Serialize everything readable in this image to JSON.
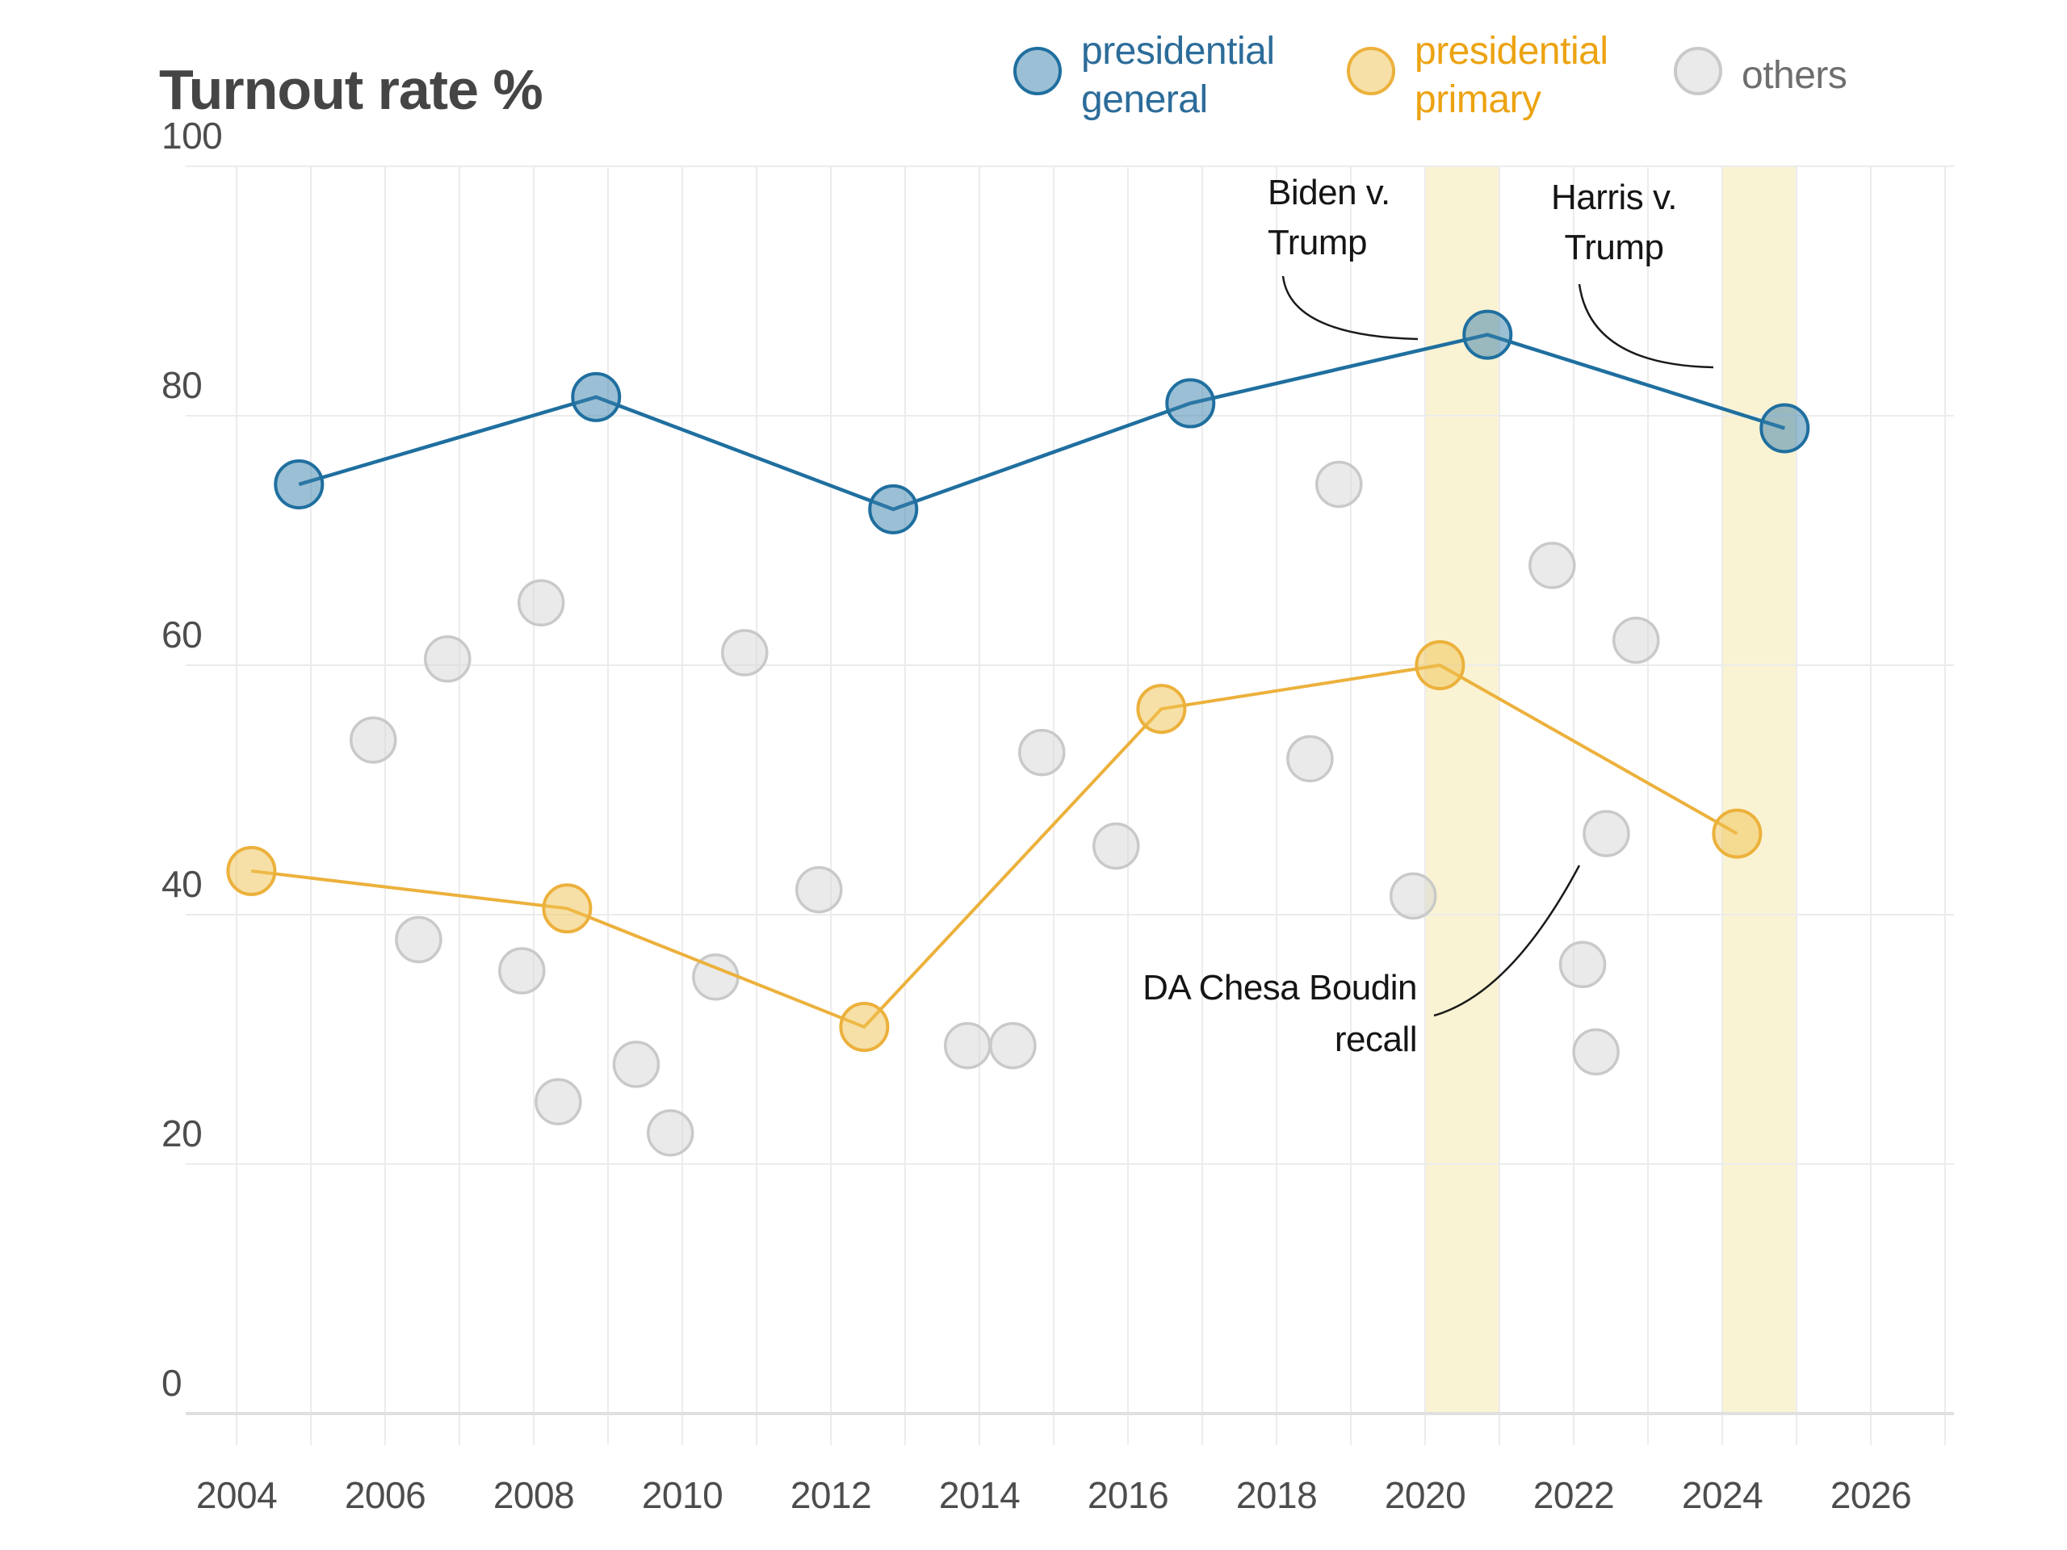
{
  "title": "Turnout rate %",
  "legend": [
    {
      "label": "presidential\ngeneral",
      "text_color": "#2c6c99",
      "dot_fill": "#9bbfd5",
      "dot_stroke": "#1f6f9f"
    },
    {
      "label": "presidential\nprimary",
      "text_color": "#eca312",
      "dot_fill": "#f7e0a7",
      "dot_stroke": "#ecb13c"
    },
    {
      "label": "others",
      "text_color": "#6e6e6e",
      "dot_fill": "#eaeaea",
      "dot_stroke": "#c9c9c9"
    }
  ],
  "chart_data": {
    "type": "scatter",
    "title": "Turnout rate %",
    "ylabel": "Turnout rate %",
    "xlabel": "",
    "x_ticks": [
      2004,
      2006,
      2008,
      2010,
      2012,
      2014,
      2016,
      2018,
      2020,
      2022,
      2024,
      2026
    ],
    "y_ticks": [
      0,
      20,
      40,
      60,
      80,
      100
    ],
    "xlim": [
      2003.3,
      2027.15
    ],
    "ylim": [
      0,
      100
    ],
    "grid": {
      "x_every_year_from": 2004,
      "x_every_year_to": 2027,
      "y_step": 20
    },
    "highlight_bands": [
      {
        "name": "band-2020-presidential",
        "from": 2020,
        "to": 2021,
        "color": "#faf3d3"
      },
      {
        "name": "band-2024-presidential",
        "from": 2024,
        "to": 2025,
        "color": "#faf3d3"
      }
    ],
    "series": [
      {
        "id": "presidential-general",
        "name": "presidential general",
        "kind": "line+scatter",
        "stroke": "#1f6f9f",
        "fill": "#377fab",
        "fill_opacity": 0.5,
        "line_width": 4.5,
        "dot_radius": 29,
        "points": [
          [
            2004.84,
            74.5
          ],
          [
            2008.84,
            81.5
          ],
          [
            2012.84,
            72.5
          ],
          [
            2016.84,
            81
          ],
          [
            2020.84,
            86.5
          ],
          [
            2024.84,
            79
          ]
        ]
      },
      {
        "id": "presidential-primary",
        "name": "presidential primary",
        "kind": "line+scatter",
        "stroke": "#ecb13c",
        "fill": "#f0c24f",
        "fill_opacity": 0.5,
        "line_width": 4,
        "dot_radius": 29,
        "points": [
          [
            2004.2,
            43.5
          ],
          [
            2008.45,
            40.5
          ],
          [
            2012.45,
            31
          ],
          [
            2016.45,
            56.5
          ],
          [
            2020.2,
            60
          ],
          [
            2024.2,
            46.5
          ]
        ]
      },
      {
        "id": "others",
        "name": "others",
        "kind": "scatter",
        "stroke": "#c9c9c9",
        "fill": "#d6d6d6",
        "fill_opacity": 0.5,
        "line_width": 0,
        "dot_radius": 27.5,
        "points": [
          [
            2005.84,
            54
          ],
          [
            2006.45,
            38
          ],
          [
            2006.84,
            60.5
          ],
          [
            2007.84,
            35.5
          ],
          [
            2008.1,
            65
          ],
          [
            2008.33,
            25
          ],
          [
            2009.38,
            28
          ],
          [
            2009.84,
            22.5
          ],
          [
            2010.45,
            35
          ],
          [
            2010.84,
            61
          ],
          [
            2011.84,
            42
          ],
          [
            2013.84,
            29.5
          ],
          [
            2014.45,
            29.5
          ],
          [
            2014.84,
            53
          ],
          [
            2015.84,
            45.5
          ],
          [
            2018.45,
            52.5
          ],
          [
            2018.84,
            74.5
          ],
          [
            2019.84,
            41.5
          ],
          [
            2021.71,
            68
          ],
          [
            2022.12,
            36
          ],
          [
            2022.3,
            29
          ],
          [
            2022.44,
            46.5
          ],
          [
            2022.84,
            62
          ]
        ]
      }
    ],
    "annotations": [
      {
        "id": "biden-v-trump",
        "lines": [
          "Biden v.",
          "Trump"
        ],
        "align": "start",
        "x": 1570,
        "y": 253,
        "leading": 62,
        "curve": {
          "x1": 1589,
          "y1": 342,
          "cx": 1598,
          "cy": 416,
          "x2": 1756,
          "y2": 420
        }
      },
      {
        "id": "harris-v-trump",
        "lines": [
          "Harris v.",
          "Trump"
        ],
        "align": "middle",
        "x": 1999,
        "y": 259,
        "leading": 62,
        "curve": {
          "x1": 1956,
          "y1": 352,
          "cx": 1970,
          "cy": 452,
          "x2": 2122,
          "y2": 455
        }
      },
      {
        "id": "da-chesa-boudin-recall",
        "lines": [
          "DA Chesa Boudin",
          "recall"
        ],
        "align": "end",
        "x": 1755,
        "y": 1238,
        "leading": 64,
        "curve": {
          "x1": 1776,
          "y1": 1258,
          "cx": 1872,
          "cy": 1230,
          "x2": 1956,
          "y2": 1072
        }
      }
    ]
  }
}
